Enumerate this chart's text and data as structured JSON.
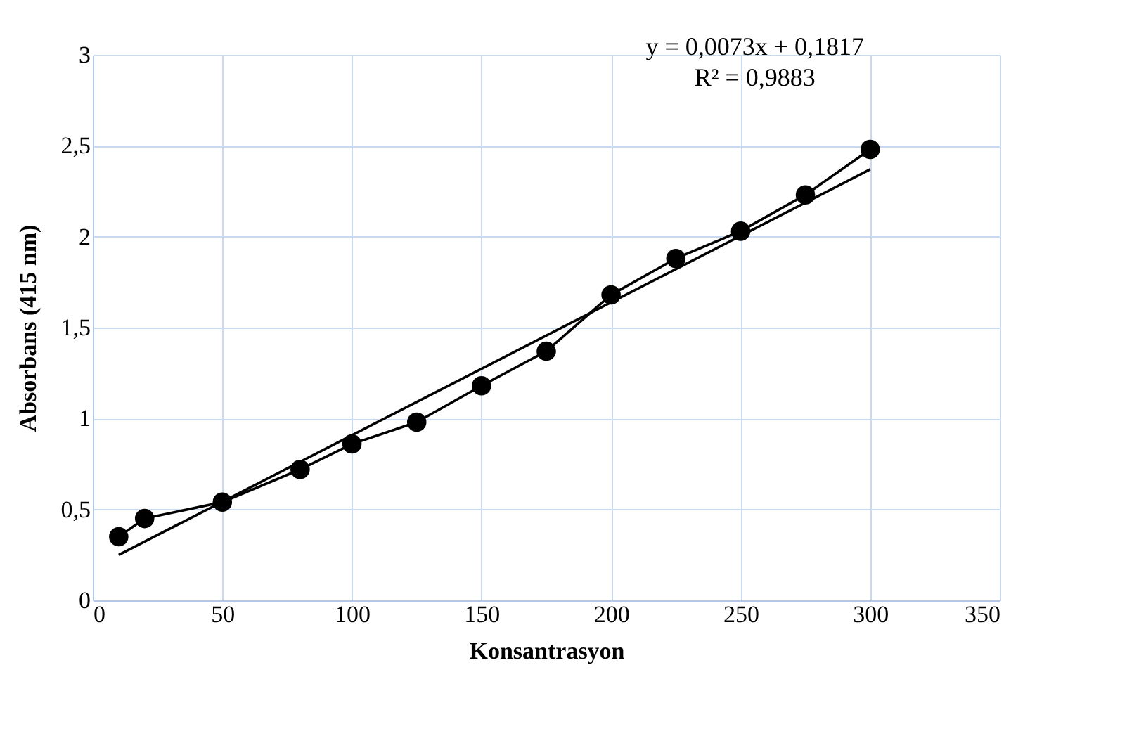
{
  "chart_data": {
    "type": "line",
    "xlabel": "Konsantrasyon",
    "ylabel": "Absorbans (415 nm)",
    "x": [
      10,
      20,
      50,
      80,
      100,
      125,
      150,
      175,
      200,
      225,
      250,
      275,
      300
    ],
    "series": [
      {
        "color": "#000000",
        "values": [
          0.35,
          0.45,
          0.54,
          0.72,
          0.86,
          0.98,
          1.18,
          1.37,
          1.68,
          1.88,
          2.03,
          2.23,
          2.48
        ]
      },
      {
        "type": "line",
        "color": "#000000",
        "x": [
          10,
          300
        ],
        "values": [
          0.25,
          2.37
        ],
        "marker": "none"
      }
    ],
    "xlim": [
      0,
      350
    ],
    "xticks": [
      0,
      50,
      100,
      150,
      200,
      250,
      300,
      350
    ],
    "ylim": [
      0,
      3
    ],
    "yticks": [
      0,
      {
        "value": 0.5,
        "label": "0,5"
      },
      1,
      {
        "value": 1.5,
        "label": "1,5"
      },
      2,
      {
        "value": 2.5,
        "label": "2,5"
      },
      3
    ],
    "grid": true,
    "marker": "circle",
    "line_style": "solid",
    "annotations": [
      "y = 0,0073x + 0,1817",
      "R² = 0,9883"
    ]
  }
}
